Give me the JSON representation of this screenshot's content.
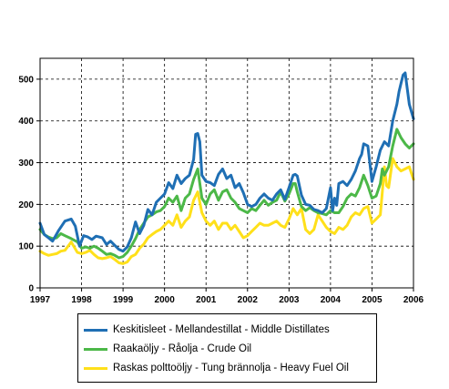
{
  "chart_data": {
    "type": "line",
    "title": "",
    "xlabel": "",
    "ylabel": "",
    "xlim": [
      1997,
      2006
    ],
    "ylim": [
      0,
      550
    ],
    "x_ticks": [
      "1997",
      "1998",
      "1999",
      "2000",
      "2001",
      "2002",
      "2003",
      "2004",
      "2005",
      "2006"
    ],
    "y_ticks": [
      "0",
      "100",
      "200",
      "300",
      "400",
      "500"
    ],
    "grid": true,
    "legend_position": "bottom",
    "series": [
      {
        "name": "Keskitisleet - Mellandestillat - Middle Distillates",
        "color": "#1f6fb4",
        "x": [
          1997.0,
          1997.1,
          1997.2,
          1997.3,
          1997.45,
          1997.6,
          1997.75,
          1997.85,
          1997.95,
          1998.05,
          1998.15,
          1998.25,
          1998.35,
          1998.5,
          1998.6,
          1998.7,
          1998.8,
          1998.9,
          1999.0,
          1999.1,
          1999.2,
          1999.3,
          1999.4,
          1999.5,
          1999.6,
          1999.7,
          1999.8,
          1999.9,
          2000.0,
          2000.1,
          2000.2,
          2000.3,
          2000.4,
          2000.5,
          2000.6,
          2000.7,
          2000.75,
          2000.8,
          2000.85,
          2000.9,
          2001.0,
          2001.1,
          2001.2,
          2001.3,
          2001.4,
          2001.5,
          2001.6,
          2001.7,
          2001.8,
          2001.9,
          2002.0,
          2002.1,
          2002.2,
          2002.3,
          2002.4,
          2002.5,
          2002.6,
          2002.7,
          2002.8,
          2002.9,
          2003.0,
          2003.1,
          2003.15,
          2003.2,
          2003.3,
          2003.4,
          2003.5,
          2003.6,
          2003.7,
          2003.8,
          2003.9,
          2004.0,
          2004.05,
          2004.1,
          2004.15,
          2004.2,
          2004.3,
          2004.4,
          2004.5,
          2004.6,
          2004.7,
          2004.75,
          2004.8,
          2004.9,
          2005.0,
          2005.1,
          2005.2,
          2005.3,
          2005.4,
          2005.5,
          2005.6,
          2005.65,
          2005.7,
          2005.75,
          2005.8,
          2005.9,
          2006.0
        ],
        "y": [
          155,
          128,
          120,
          112,
          138,
          160,
          165,
          148,
          100,
          125,
          122,
          116,
          124,
          120,
          104,
          112,
          102,
          92,
          88,
          98,
          120,
          158,
          130,
          150,
          188,
          175,
          205,
          215,
          225,
          252,
          238,
          270,
          250,
          262,
          270,
          308,
          368,
          370,
          350,
          270,
          255,
          252,
          245,
          272,
          285,
          262,
          270,
          240,
          250,
          228,
          200,
          195,
          200,
          215,
          225,
          215,
          210,
          225,
          235,
          212,
          240,
          270,
          272,
          268,
          222,
          200,
          198,
          188,
          185,
          180,
          190,
          240,
          185,
          215,
          198,
          250,
          255,
          245,
          260,
          280,
          310,
          320,
          345,
          340,
          255,
          290,
          330,
          350,
          340,
          400,
          440,
          470,
          490,
          510,
          515,
          440,
          405
        ]
      },
      {
        "name": "Raakaöljy - Råolja - Crude Oil",
        "color": "#4cb848",
        "x": [
          1997.0,
          1997.1,
          1997.2,
          1997.3,
          1997.4,
          1997.5,
          1997.6,
          1997.75,
          1997.9,
          1998.0,
          1998.1,
          1998.2,
          1998.3,
          1998.4,
          1998.5,
          1998.6,
          1998.7,
          1998.8,
          1998.9,
          1999.0,
          1999.1,
          1999.2,
          1999.3,
          1999.4,
          1999.5,
          1999.6,
          1999.7,
          1999.8,
          1999.9,
          2000.0,
          2000.1,
          2000.2,
          2000.3,
          2000.4,
          2000.5,
          2000.6,
          2000.7,
          2000.8,
          2000.9,
          2001.0,
          2001.1,
          2001.2,
          2001.3,
          2001.4,
          2001.5,
          2001.6,
          2001.7,
          2001.8,
          2001.9,
          2002.0,
          2002.1,
          2002.2,
          2002.3,
          2002.4,
          2002.5,
          2002.6,
          2002.7,
          2002.8,
          2002.9,
          2003.0,
          2003.1,
          2003.15,
          2003.2,
          2003.3,
          2003.4,
          2003.5,
          2003.6,
          2003.7,
          2003.8,
          2003.9,
          2004.0,
          2004.1,
          2004.2,
          2004.3,
          2004.4,
          2004.5,
          2004.6,
          2004.7,
          2004.8,
          2004.9,
          2005.0,
          2005.1,
          2005.2,
          2005.25,
          2005.3,
          2005.4,
          2005.5,
          2005.6,
          2005.7,
          2005.8,
          2005.9,
          2006.0
        ],
        "y": [
          140,
          128,
          122,
          118,
          120,
          130,
          125,
          118,
          110,
          95,
          98,
          95,
          100,
          95,
          88,
          80,
          82,
          78,
          72,
          75,
          85,
          100,
          118,
          140,
          155,
          170,
          175,
          182,
          185,
          195,
          215,
          205,
          220,
          185,
          215,
          225,
          260,
          285,
          215,
          200,
          225,
          235,
          210,
          230,
          235,
          215,
          205,
          190,
          185,
          180,
          190,
          185,
          198,
          210,
          198,
          205,
          210,
          230,
          208,
          225,
          250,
          250,
          230,
          195,
          185,
          192,
          185,
          180,
          178,
          175,
          185,
          180,
          180,
          195,
          215,
          225,
          220,
          240,
          270,
          245,
          215,
          220,
          250,
          285,
          270,
          290,
          340,
          380,
          360,
          345,
          335,
          345
        ]
      },
      {
        "name": "Raskas polttoöljy - Tung brännolja - Heavy Fuel Oil",
        "color": "#ffe01a",
        "x": [
          1997.0,
          1997.1,
          1997.2,
          1997.3,
          1997.4,
          1997.5,
          1997.6,
          1997.75,
          1997.9,
          1998.0,
          1998.1,
          1998.2,
          1998.3,
          1998.4,
          1998.5,
          1998.6,
          1998.7,
          1998.8,
          1998.9,
          1999.0,
          1999.1,
          1999.2,
          1999.3,
          1999.4,
          1999.5,
          1999.6,
          1999.7,
          1999.8,
          1999.9,
          2000.0,
          2000.1,
          2000.2,
          2000.3,
          2000.4,
          2000.5,
          2000.6,
          2000.7,
          2000.8,
          2000.9,
          2001.0,
          2001.1,
          2001.2,
          2001.3,
          2001.4,
          2001.5,
          2001.6,
          2001.7,
          2001.8,
          2001.9,
          2002.0,
          2002.1,
          2002.2,
          2002.3,
          2002.4,
          2002.5,
          2002.6,
          2002.7,
          2002.8,
          2002.9,
          2003.0,
          2003.1,
          2003.2,
          2003.3,
          2003.4,
          2003.5,
          2003.6,
          2003.7,
          2003.8,
          2003.9,
          2004.0,
          2004.1,
          2004.2,
          2004.3,
          2004.4,
          2004.5,
          2004.6,
          2004.7,
          2004.8,
          2004.9,
          2005.0,
          2005.1,
          2005.2,
          2005.25,
          2005.3,
          2005.35,
          2005.4,
          2005.5,
          2005.6,
          2005.7,
          2005.8,
          2005.9,
          2006.0
        ],
        "y": [
          88,
          82,
          78,
          80,
          82,
          88,
          90,
          110,
          85,
          82,
          85,
          90,
          80,
          72,
          70,
          72,
          75,
          68,
          60,
          58,
          62,
          75,
          80,
          95,
          105,
          120,
          128,
          135,
          140,
          150,
          160,
          150,
          175,
          145,
          160,
          170,
          210,
          230,
          180,
          160,
          150,
          160,
          140,
          155,
          155,
          140,
          150,
          135,
          120,
          125,
          135,
          145,
          155,
          150,
          150,
          155,
          160,
          150,
          145,
          165,
          190,
          175,
          190,
          140,
          130,
          140,
          175,
          160,
          145,
          135,
          130,
          145,
          140,
          150,
          170,
          180,
          175,
          190,
          195,
          155,
          165,
          175,
          230,
          290,
          245,
          240,
          310,
          290,
          280,
          285,
          290,
          260
        ]
      }
    ]
  }
}
